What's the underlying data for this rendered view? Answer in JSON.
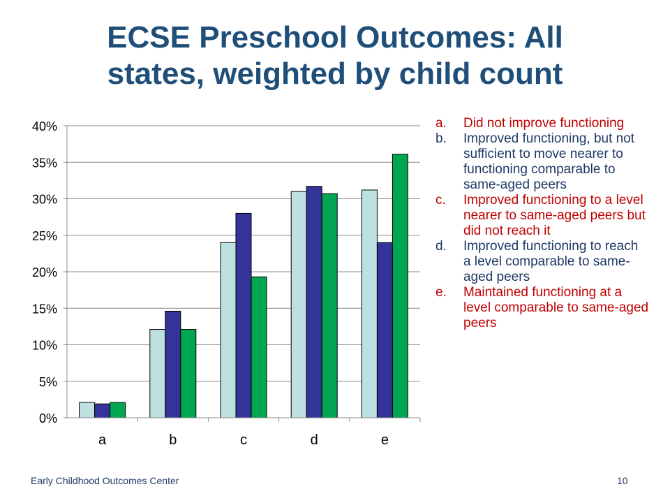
{
  "slide": {
    "title_line1": "ECSE Preschool Outcomes: All",
    "title_line2": "states, weighted by child count",
    "footer_org": "Early Childhood Outcomes Center",
    "page_number": "10"
  },
  "legend": [
    {
      "marker": "a.",
      "text": "Did not improve functioning",
      "color": "#c00000"
    },
    {
      "marker": "b.",
      "text": "Improved functioning, but not sufficient to move nearer to functioning comparable to same-aged peers",
      "color": "#1f3864"
    },
    {
      "marker": "c.",
      "text": "Improved functioning to a level nearer to same-aged peers but did not reach it",
      "color": "#c00000"
    },
    {
      "marker": "d.",
      "text": "Improved functioning to reach a level comparable to same-aged peers",
      "color": "#1f3864"
    },
    {
      "marker": "e.",
      "text": "Maintained functioning at a level comparable to same-aged peers",
      "color": "#c00000"
    }
  ],
  "chart_data": {
    "type": "bar",
    "categories": [
      "a",
      "b",
      "c",
      "d",
      "e"
    ],
    "series": [
      {
        "values": [
          2.1,
          12.1,
          24.0,
          31.0,
          31.2
        ],
        "color": "#bfe0e0"
      },
      {
        "values": [
          1.9,
          14.6,
          28.0,
          31.7,
          24.0
        ],
        "color": "#333399"
      },
      {
        "values": [
          2.1,
          12.1,
          19.3,
          30.7,
          36.1
        ],
        "color": "#00a651"
      }
    ],
    "ylim": [
      0,
      40
    ],
    "yticks": [
      "0%",
      "5%",
      "10%",
      "15%",
      "20%",
      "25%",
      "30%",
      "35%",
      "40%"
    ],
    "grid": true
  }
}
